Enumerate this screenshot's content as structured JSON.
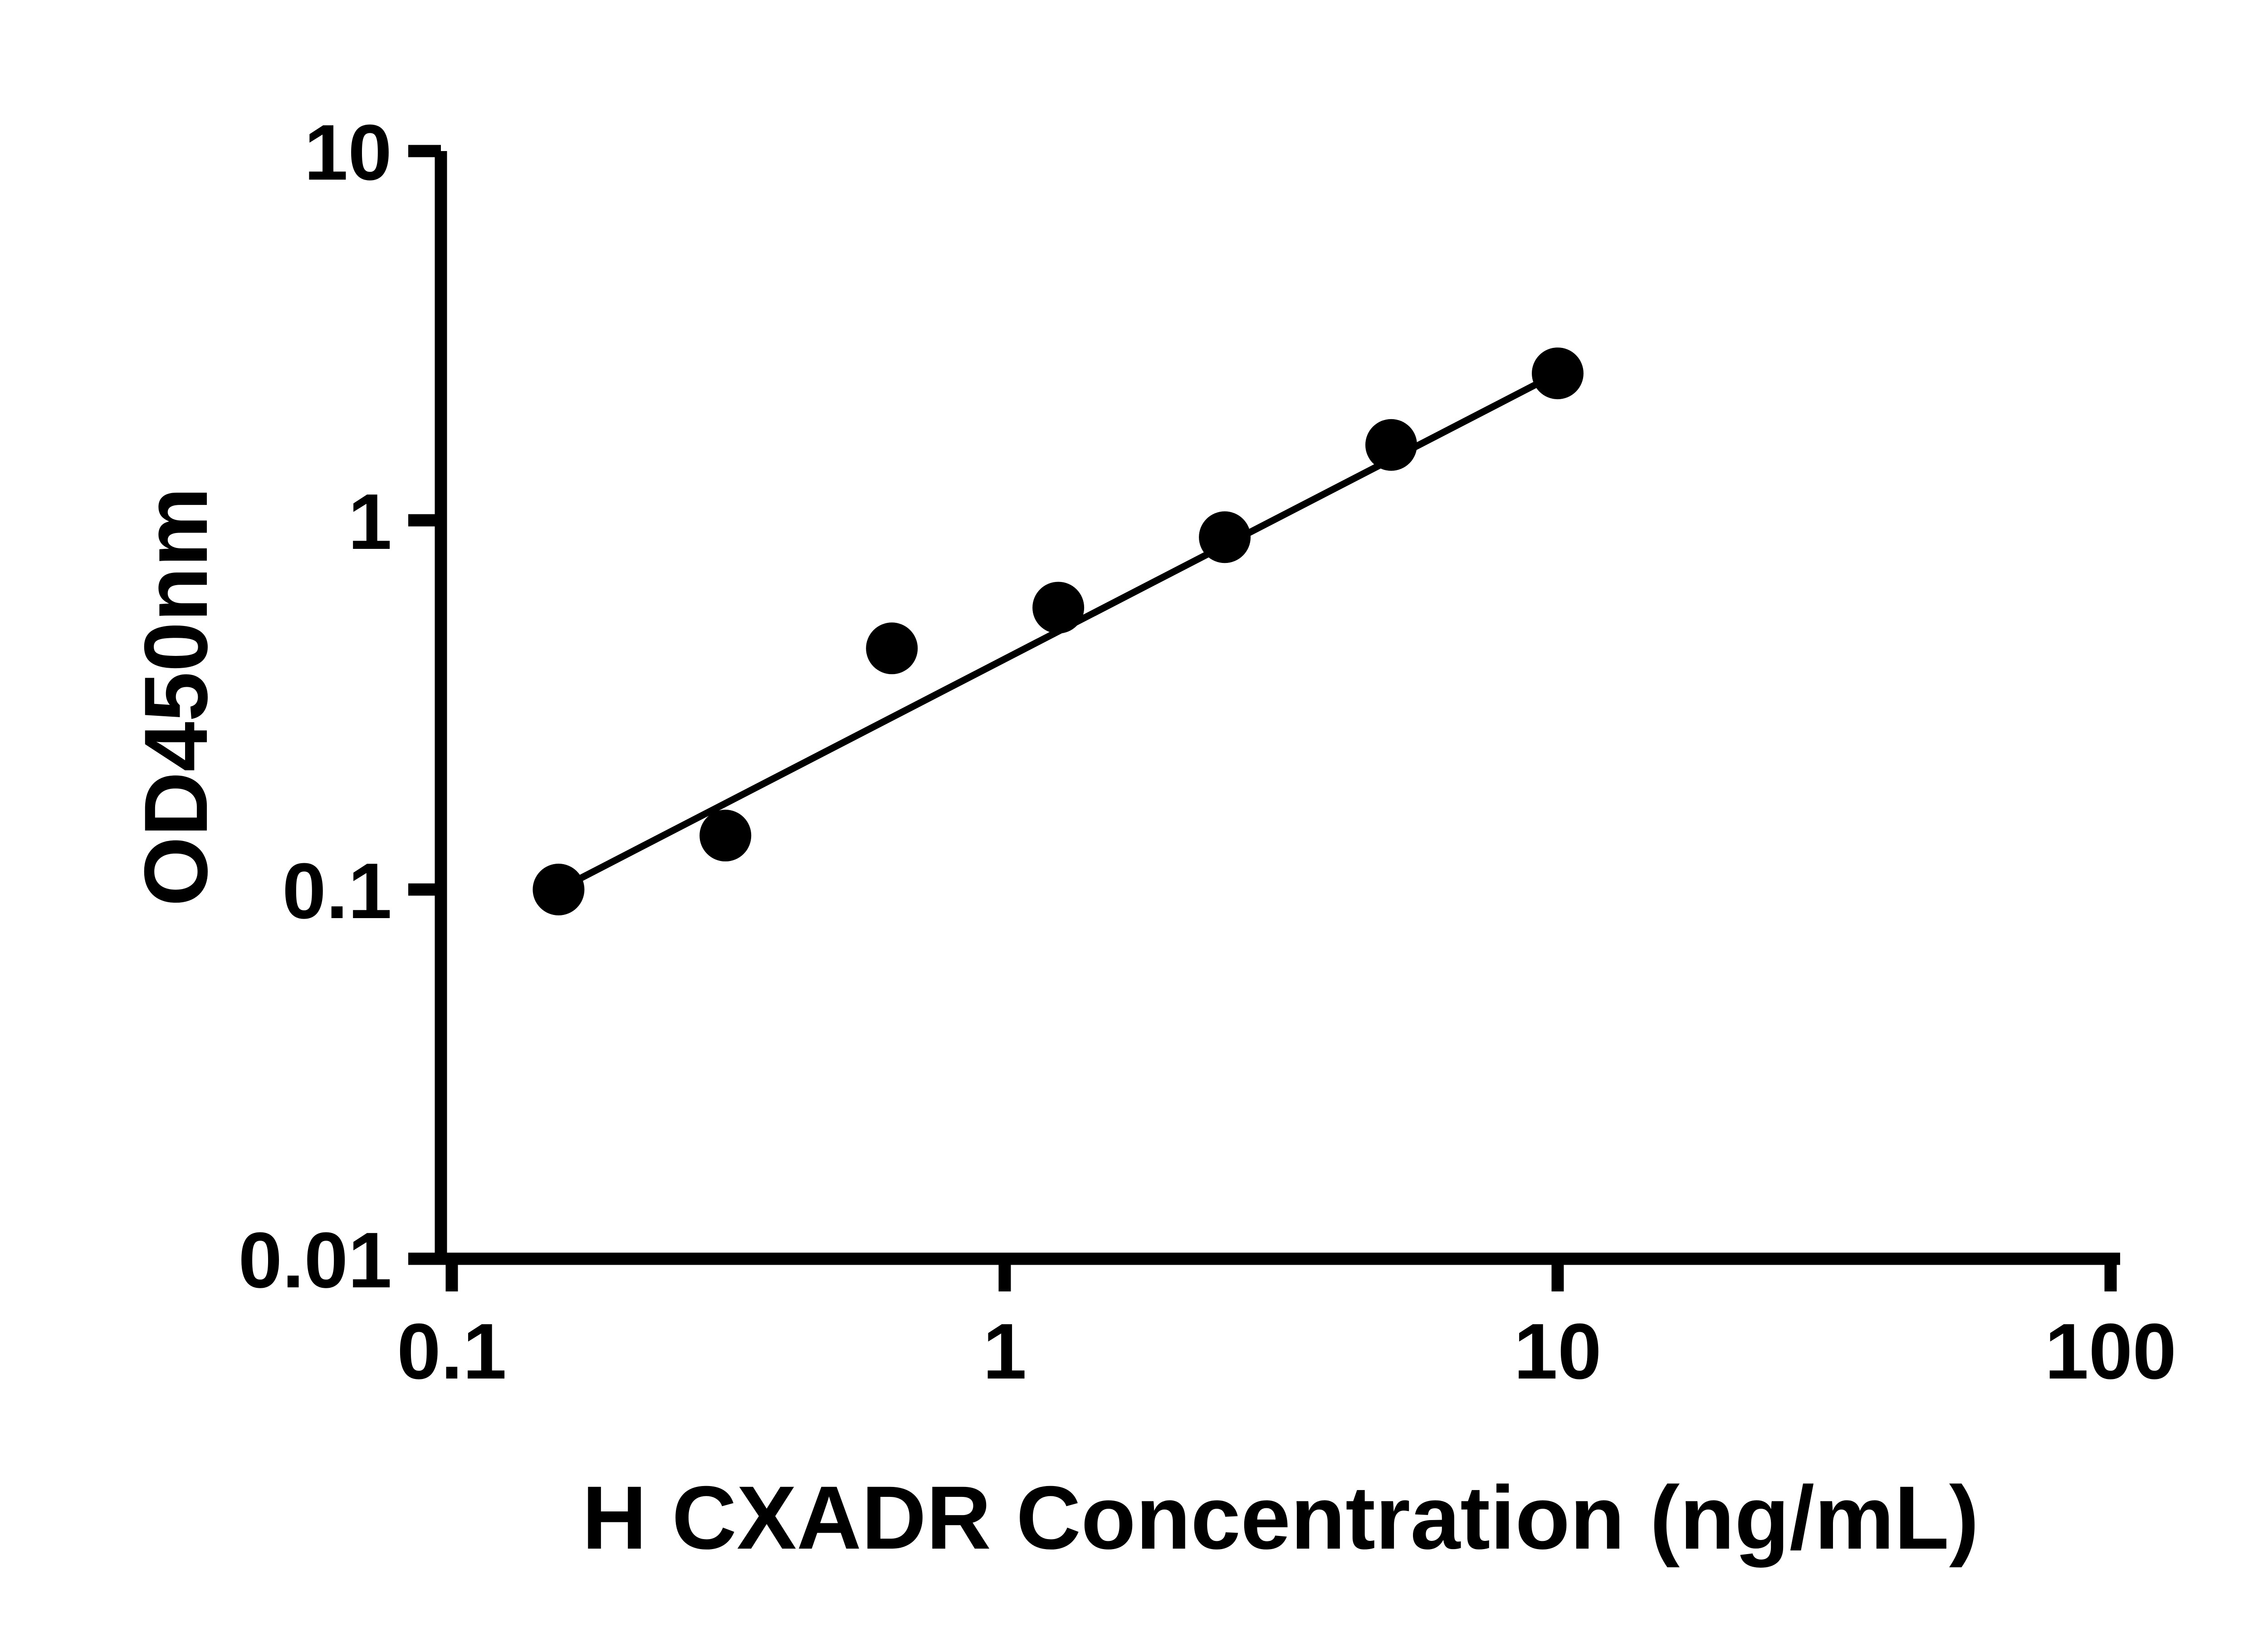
{
  "figure": {
    "background_color": "#ffffff",
    "foreground_color": "#000000"
  },
  "chart_data": {
    "type": "scatter",
    "title": "",
    "xlabel": "H CXADR Concentration (ng/mL)",
    "ylabel": "OD450nm",
    "x_scale": "log10",
    "y_scale": "log10",
    "xlim": [
      0.1,
      100
    ],
    "ylim": [
      0.01,
      10
    ],
    "x_ticks": [
      0.1,
      1,
      10,
      100
    ],
    "x_tick_labels": [
      "0.1",
      "1",
      "10",
      "100"
    ],
    "y_ticks": [
      0.01,
      0.1,
      1,
      10
    ],
    "y_tick_labels": [
      "0.01",
      "0.1",
      "1",
      "10"
    ],
    "grid": false,
    "legend": false,
    "points": [
      {
        "x": 0.156,
        "y": 0.1
      },
      {
        "x": 0.3125,
        "y": 0.14
      },
      {
        "x": 0.625,
        "y": 0.45
      },
      {
        "x": 1.25,
        "y": 0.58
      },
      {
        "x": 2.5,
        "y": 0.9
      },
      {
        "x": 5,
        "y": 1.6
      },
      {
        "x": 10,
        "y": 2.5
      }
    ],
    "fit_line": {
      "type": "power",
      "equation_a": 0.421,
      "equation_b": 0.774,
      "x_start": 0.156,
      "x_end": 10
    },
    "marker": {
      "shape": "circle",
      "color": "#000000"
    },
    "line_color": "#000000"
  }
}
